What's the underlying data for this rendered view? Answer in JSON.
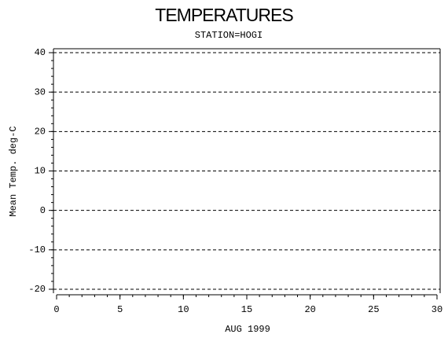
{
  "chart_data": {
    "type": "line",
    "title": "TEMPERATURES",
    "subtitle": "STATION=HOGI",
    "x_label": "AUG 1999",
    "y_label": "Mean Temp. deg-C",
    "series": [],
    "xlim": [
      0,
      30
    ],
    "xticks": [
      0,
      5,
      10,
      15,
      20,
      25,
      30
    ],
    "x_minor_step": 1,
    "ylim": [
      -21,
      41
    ],
    "yticks": [
      -20,
      -10,
      0,
      10,
      20,
      30,
      40
    ],
    "y_minor_step": 2,
    "grid": true
  }
}
